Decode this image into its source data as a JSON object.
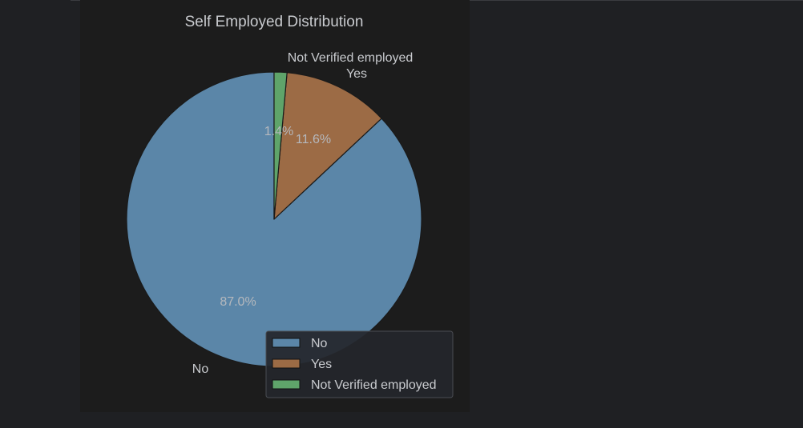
{
  "chart_data": {
    "type": "pie",
    "title": "Self Employed Distribution",
    "categories": [
      "No",
      "Yes",
      "Not Verified employed"
    ],
    "values": [
      87.0,
      11.6,
      1.4
    ],
    "percent_labels": [
      "87.0%",
      "11.6%",
      "1.4%"
    ],
    "colors": [
      "#5b86a8",
      "#9c6b45",
      "#5fa46a"
    ],
    "start_angle_deg": 90,
    "direction": "counterclockwise",
    "legend": {
      "placement": "lower-right",
      "entries": [
        "No",
        "Yes",
        "Not Verified employed"
      ]
    }
  },
  "colors": {
    "page_background": "#1f2023",
    "plot_background": "#1c1c1c",
    "text": "#c9cbcf",
    "pct_text": "#b5b8bd",
    "edge": "#1a1a1a",
    "legend_background": "#24262b",
    "legend_border": "#4a4d53"
  }
}
